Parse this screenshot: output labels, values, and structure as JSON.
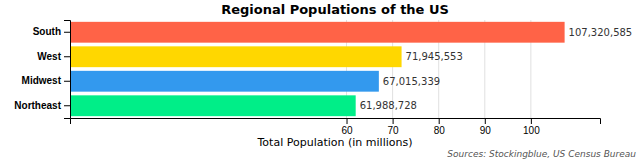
{
  "chart_data": {
    "type": "bar",
    "orientation": "horizontal",
    "title": "Regional Populations of the US",
    "xlabel": "Total Population (in millions)",
    "source": "Sources: Stockingblue, US Census Bureau",
    "categories": [
      "South",
      "West",
      "Midwest",
      "Northeast"
    ],
    "values": [
      107.320585,
      71.945553,
      67.015339,
      61.988728
    ],
    "value_labels": [
      "107,320,585",
      "71,945,553",
      "67,015,339",
      "61,988,728"
    ],
    "colors": [
      "#FF6347",
      "#FFD700",
      "#3399EE",
      "#00EE88"
    ],
    "xlim": [
      0,
      115
    ],
    "xticks": [
      60,
      70,
      80,
      90,
      100
    ],
    "grid": true,
    "data_labels": true
  }
}
